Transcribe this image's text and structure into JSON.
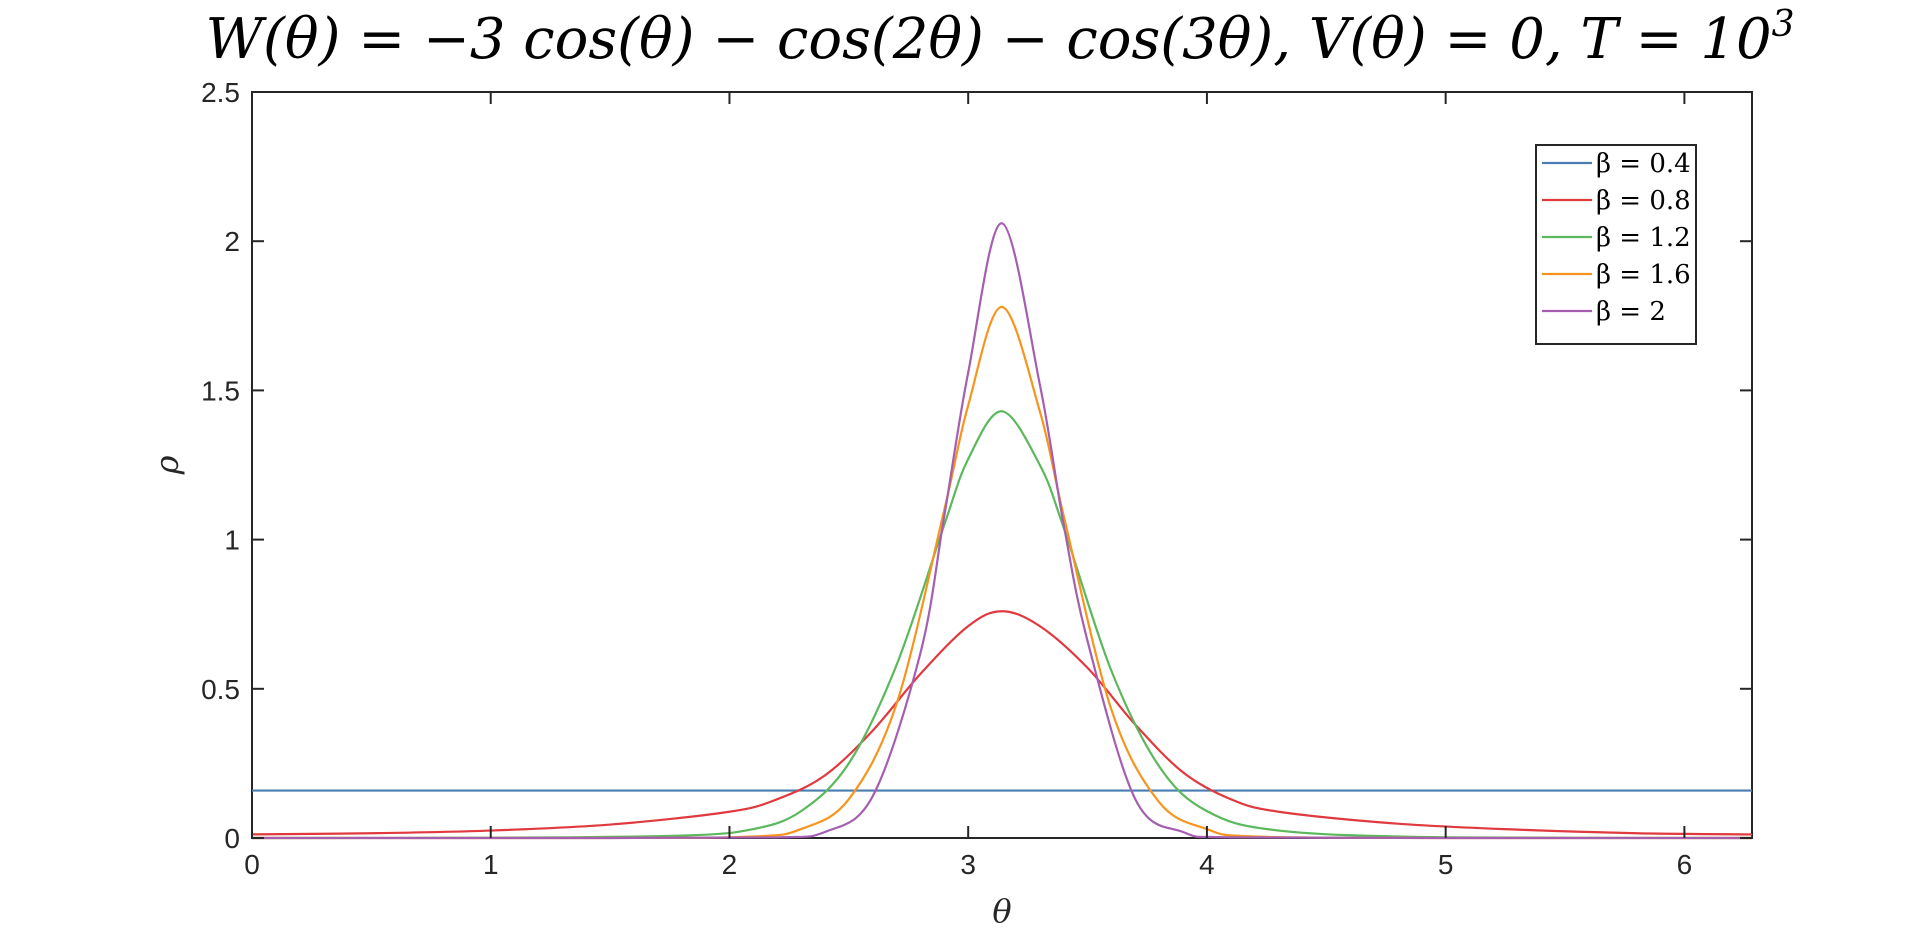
{
  "chart_data": {
    "type": "line",
    "title": "W(θ) = −3 cos(θ) − cos(2θ) − cos(3θ), V(θ) = 0, T = 10",
    "title_superscript": "3",
    "xlabel": "θ",
    "ylabel": "ρ",
    "xlim": [
      0,
      6.2832
    ],
    "ylim": [
      0,
      2.5
    ],
    "xticks": [
      0,
      1,
      2,
      3,
      4,
      5,
      6
    ],
    "yticks": [
      0,
      0.5,
      1,
      1.5,
      2,
      2.5
    ],
    "xtick_labels": [
      "0",
      "1",
      "2",
      "3",
      "4",
      "5",
      "6"
    ],
    "ytick_labels": [
      "0",
      "0.5",
      "1",
      "1.5",
      "2",
      "2.5"
    ],
    "grid": false,
    "legend_position": "top-right",
    "series": [
      {
        "name": "β = 0.4",
        "color": "#4a7eb0",
        "x": [
          0,
          1,
          2,
          3,
          3.1416,
          4,
          5,
          6,
          6.2832
        ],
        "y": [
          0.159,
          0.159,
          0.159,
          0.159,
          0.159,
          0.159,
          0.159,
          0.159,
          0.159
        ]
      },
      {
        "name": "β = 0.8",
        "color": "#e0393e",
        "x": [
          0,
          0.5,
          1,
          1.5,
          2,
          2.2,
          2.4,
          2.6,
          2.8,
          3.0,
          3.1416,
          3.3,
          3.5,
          3.7,
          3.9,
          4.1,
          4.3,
          4.8,
          5.3,
          5.8,
          6.2832
        ],
        "y": [
          0.012,
          0.016,
          0.025,
          0.045,
          0.088,
          0.13,
          0.21,
          0.36,
          0.55,
          0.71,
          0.76,
          0.71,
          0.57,
          0.38,
          0.22,
          0.13,
          0.088,
          0.048,
          0.028,
          0.016,
          0.012
        ],
        "peak_value": 0.76
      },
      {
        "name": "β = 1.2",
        "color": "#5cb85c",
        "x": [
          0,
          1,
          1.8,
          2.1,
          2.3,
          2.5,
          2.7,
          2.9,
          3.0,
          3.1416,
          3.3,
          3.4,
          3.6,
          3.8,
          4.0,
          4.3,
          5,
          6.2832
        ],
        "y": [
          0,
          0.001,
          0.008,
          0.03,
          0.09,
          0.25,
          0.58,
          1.05,
          1.27,
          1.43,
          1.25,
          1.04,
          0.56,
          0.24,
          0.09,
          0.025,
          0.002,
          0
        ],
        "peak_value": 1.43
      },
      {
        "name": "β = 1.6",
        "color": "#f7941d",
        "x": [
          0,
          1.5,
          2.1,
          2.3,
          2.5,
          2.7,
          2.9,
          3.0,
          3.1416,
          3.3,
          3.4,
          3.6,
          3.8,
          4.0,
          4.2,
          5,
          6.2832
        ],
        "y": [
          0,
          0,
          0.005,
          0.03,
          0.13,
          0.45,
          1.1,
          1.45,
          1.78,
          1.43,
          1.08,
          0.43,
          0.12,
          0.03,
          0.005,
          0,
          0
        ],
        "peak_value": 1.78
      },
      {
        "name": "β = 2",
        "color": "#a55eb0",
        "x": [
          0,
          1.5,
          2.2,
          2.4,
          2.6,
          2.8,
          2.9,
          3.0,
          3.1416,
          3.3,
          3.4,
          3.5,
          3.7,
          3.9,
          4.1,
          5,
          6.2832
        ],
        "y": [
          0,
          0,
          0.002,
          0.02,
          0.14,
          0.62,
          1.08,
          1.56,
          2.06,
          1.52,
          1.05,
          0.66,
          0.13,
          0.02,
          0.002,
          0,
          0
        ],
        "peak_value": 2.06
      }
    ]
  }
}
